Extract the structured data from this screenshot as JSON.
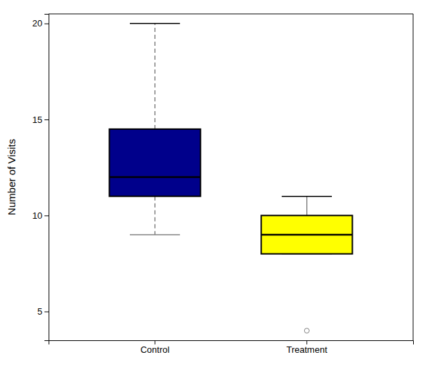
{
  "chart_data": {
    "type": "box",
    "categories": [
      "Control",
      "Treatment"
    ],
    "ylabel": "Number of Visits",
    "boxes": [
      {
        "whisker_low": 9,
        "q1": 11,
        "median": 12,
        "q3": 14.5,
        "whisker_high": 20,
        "outliers": [],
        "line_style": "dashed"
      },
      {
        "whisker_low": 8,
        "q1": 8,
        "median": 9,
        "q3": 10,
        "whisker_high": 11,
        "outliers": [
          4
        ],
        "line_style": "solid"
      }
    ],
    "colors": [
      "#00008B",
      "#FFFF00"
    ],
    "ylim": [
      3.5,
      20.5
    ],
    "yticks": [
      5,
      10,
      15,
      20
    ],
    "grid": false
  }
}
